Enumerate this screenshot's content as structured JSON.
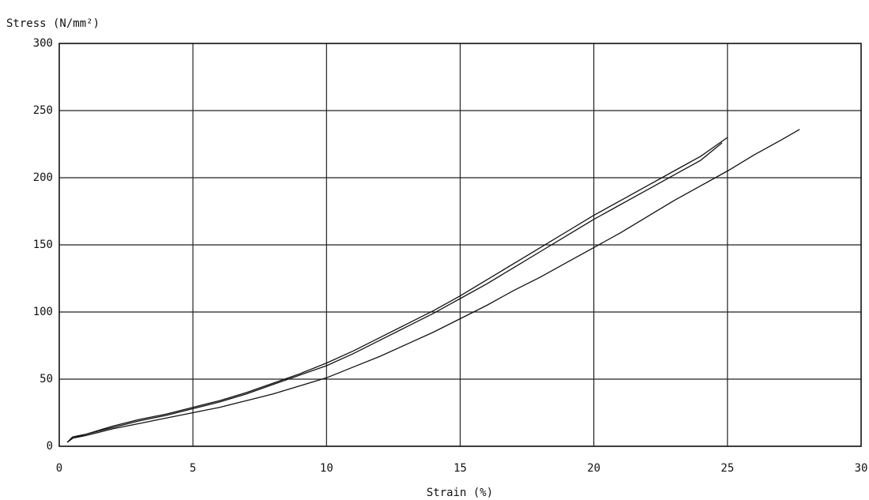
{
  "chart_data": {
    "type": "line",
    "xlabel": "Strain (%)",
    "ylabel": "Stress (N/mm²)",
    "xlim": [
      0,
      30
    ],
    "xticks": [
      0,
      5,
      10,
      15,
      20,
      25,
      30
    ],
    "ylim": [
      0,
      300
    ],
    "yticks": [
      0,
      50,
      100,
      150,
      200,
      250,
      300
    ],
    "grid": true,
    "series": [
      {
        "color": "#111111",
        "x": [
          0.3,
          0.5,
          1,
          2,
          3,
          4,
          5,
          6,
          7,
          8,
          9,
          10,
          11,
          12,
          13,
          14,
          15,
          16,
          17,
          18,
          19,
          20,
          21,
          22,
          23,
          24,
          25
        ],
        "values": [
          3,
          7,
          9,
          15,
          20,
          24,
          29,
          34,
          40,
          47,
          54,
          62,
          71,
          81,
          91,
          101,
          112,
          124,
          136,
          148,
          160,
          172,
          183,
          194,
          205,
          216,
          230
        ]
      },
      {
        "color": "#111111",
        "x": [
          0.3,
          0.5,
          1,
          2,
          3,
          4,
          5,
          6,
          7,
          8,
          9,
          10,
          11,
          12,
          13,
          14,
          15,
          16,
          17,
          18,
          19,
          20,
          21,
          22,
          23,
          24,
          24.8
        ],
        "values": [
          3,
          6,
          9,
          14,
          19,
          23,
          28,
          33,
          39,
          46,
          53,
          60,
          69,
          79,
          89,
          99,
          110,
          121,
          133,
          145,
          157,
          169,
          180,
          191,
          202,
          213,
          226
        ]
      },
      {
        "color": "#111111",
        "x": [
          0.3,
          0.5,
          1,
          2,
          3,
          4,
          5,
          6,
          7,
          8,
          9,
          10,
          11,
          12,
          13,
          14,
          15,
          16,
          17,
          18,
          19,
          20,
          21,
          22,
          23,
          24,
          25,
          26,
          27,
          27.7
        ],
        "values": [
          3,
          6,
          8,
          13,
          17,
          21,
          25,
          29,
          34,
          39,
          45,
          51,
          59,
          67,
          76,
          85,
          95,
          105,
          116,
          126,
          137,
          148,
          159,
          171,
          183,
          194,
          205,
          217,
          228,
          236
        ]
      }
    ]
  }
}
